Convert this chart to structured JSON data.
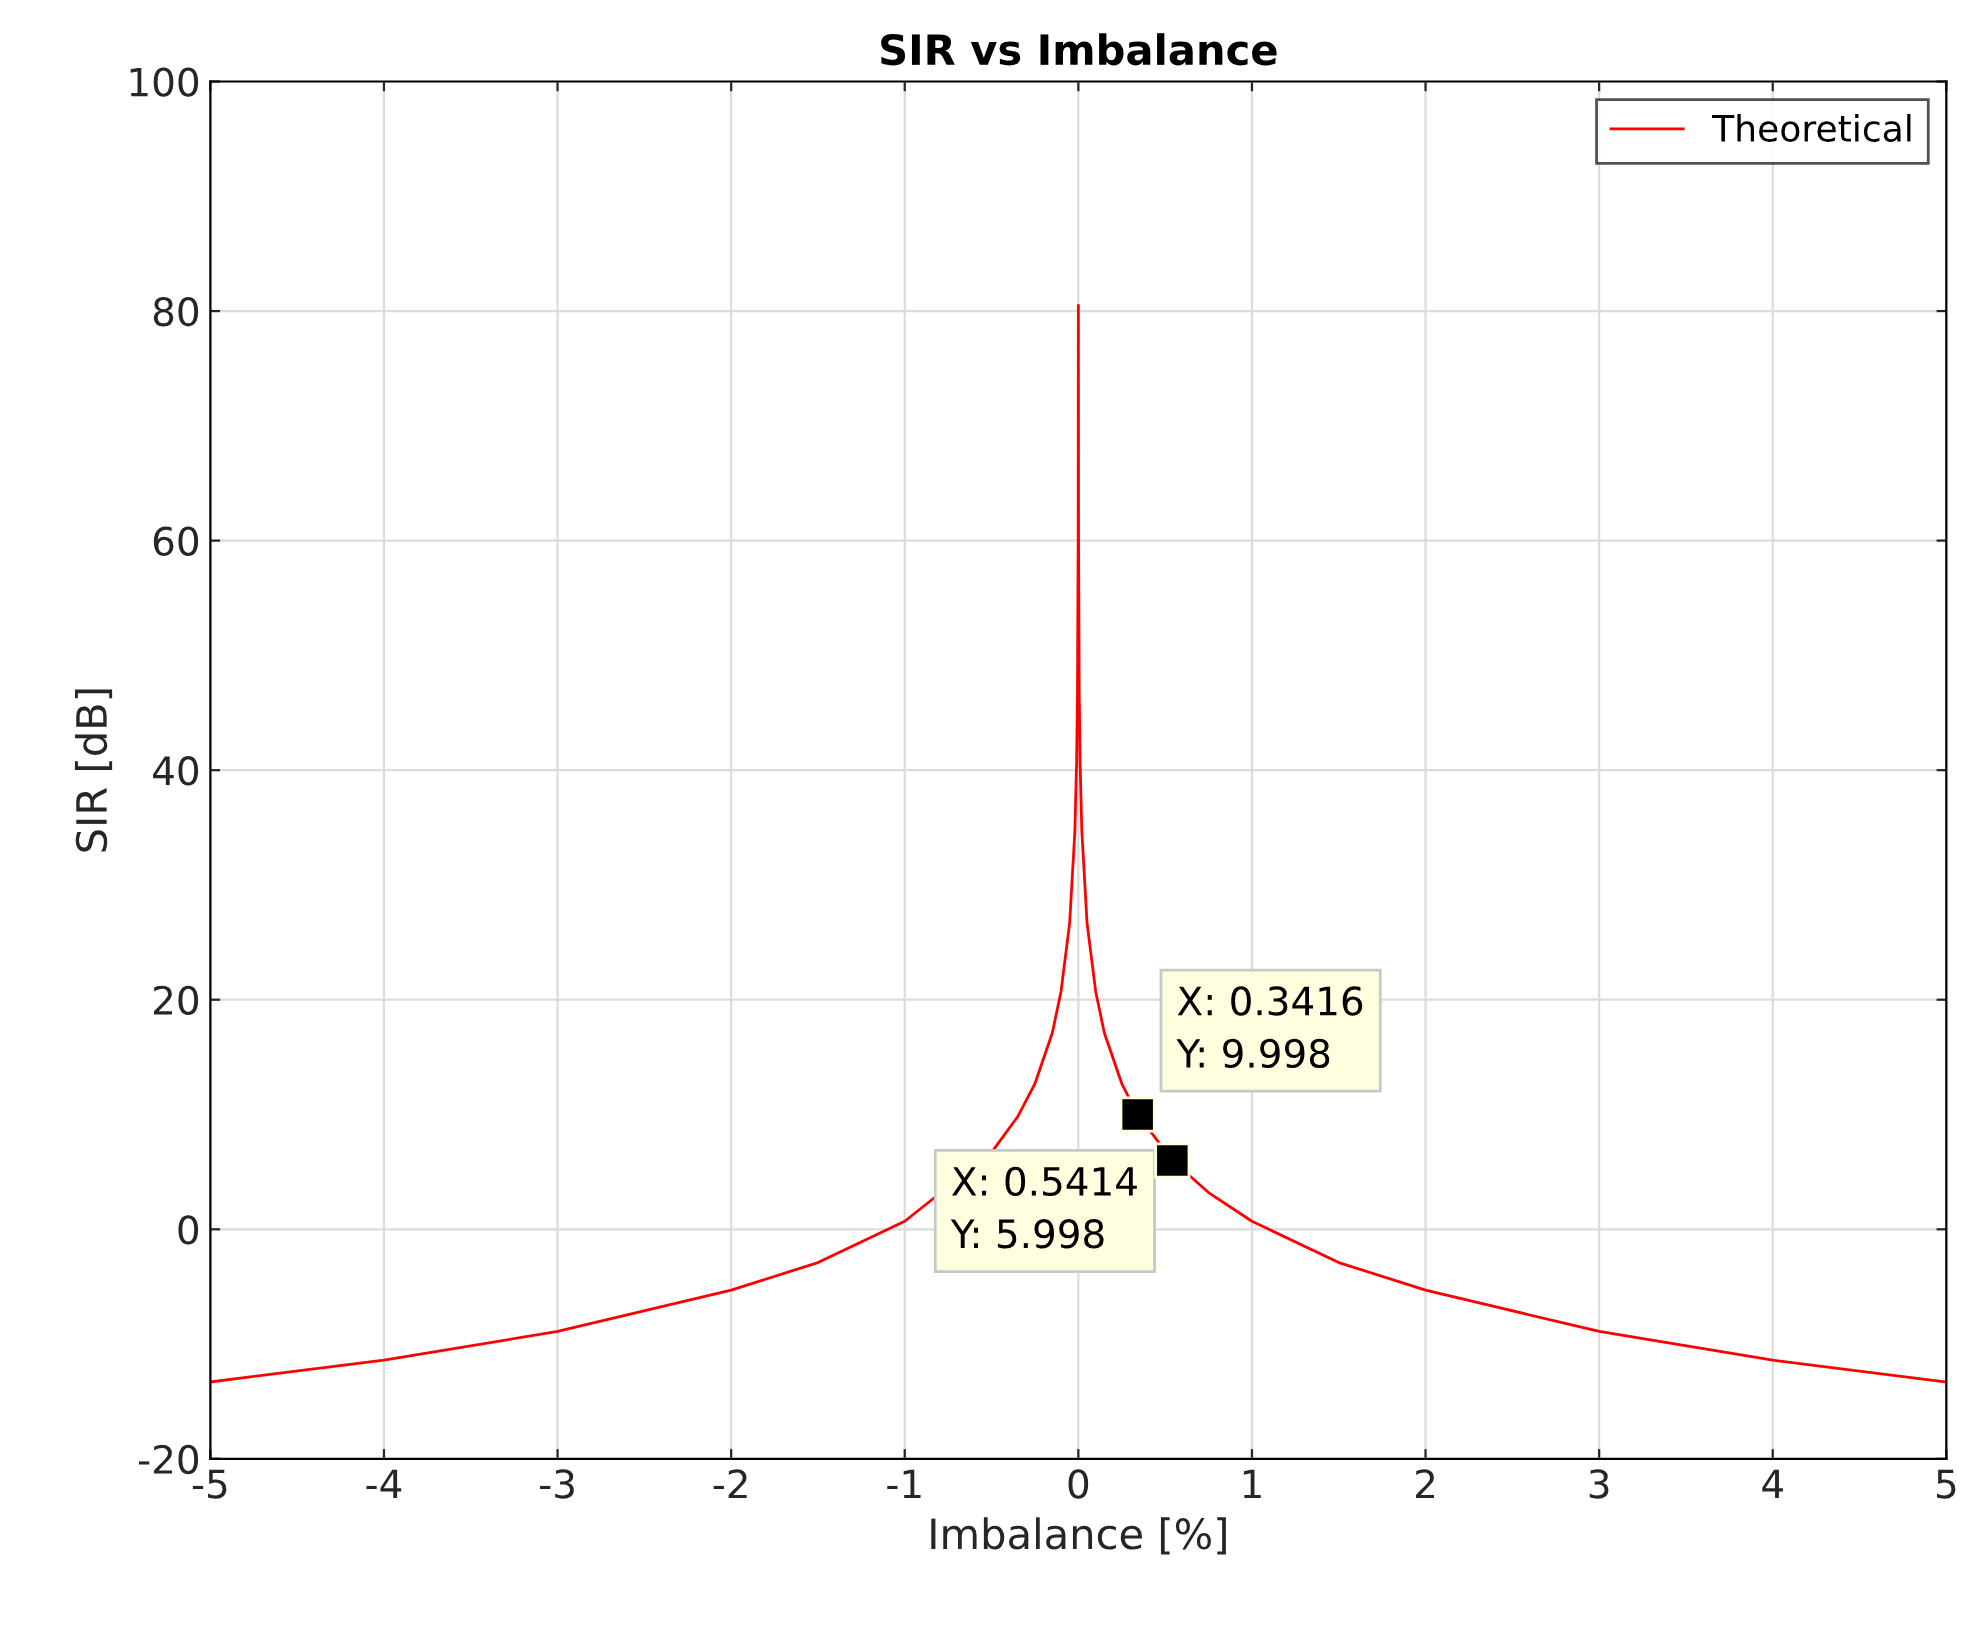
{
  "chart_data": {
    "type": "line",
    "title": "SIR vs Imbalance",
    "xlabel": "Imbalance [%]",
    "ylabel": "SIR [dB]",
    "xlim": [
      -5,
      5
    ],
    "ylim": [
      -20,
      100
    ],
    "xticks": [
      -5,
      -4,
      -3,
      -2,
      -1,
      0,
      1,
      2,
      3,
      4,
      5
    ],
    "yticks": [
      -20,
      0,
      20,
      40,
      60,
      80,
      100
    ],
    "grid": true,
    "legend": "top right",
    "series": [
      {
        "name": "Theoretical",
        "color": "#ff0000",
        "x": [
          -5,
          -4,
          -3,
          -2,
          -1.5,
          -1,
          -0.5,
          -0.35,
          -0.25,
          -0.15,
          -0.1,
          -0.05,
          -0.02,
          -0.01,
          -0.005,
          -0.001,
          0,
          0.001,
          0.005,
          0.01,
          0.02,
          0.05,
          0.1,
          0.15,
          0.25,
          0.3416,
          0.5414,
          0.75,
          1,
          1.5,
          2,
          3,
          4,
          5
        ],
        "values": [
          -13.3,
          -11.4,
          -8.9,
          -5.3,
          -2.9,
          0.7,
          6.7,
          9.8,
          12.7,
          17.1,
          20.7,
          26.7,
          34.7,
          40.7,
          46.7,
          60.7,
          80.5,
          60.7,
          46.7,
          40.7,
          34.7,
          26.7,
          20.7,
          17.1,
          12.7,
          10.0,
          6.0,
          3.2,
          0.7,
          -2.9,
          -5.3,
          -8.9,
          -11.4,
          -13.3
        ]
      }
    ],
    "annotations": [
      {
        "text": "X: 0.3416\nY: 9.998",
        "x": 0.3416,
        "y": 9.998
      },
      {
        "text": "X: 0.5414\nY: 5.998",
        "x": 0.5414,
        "y": 5.998
      }
    ]
  }
}
